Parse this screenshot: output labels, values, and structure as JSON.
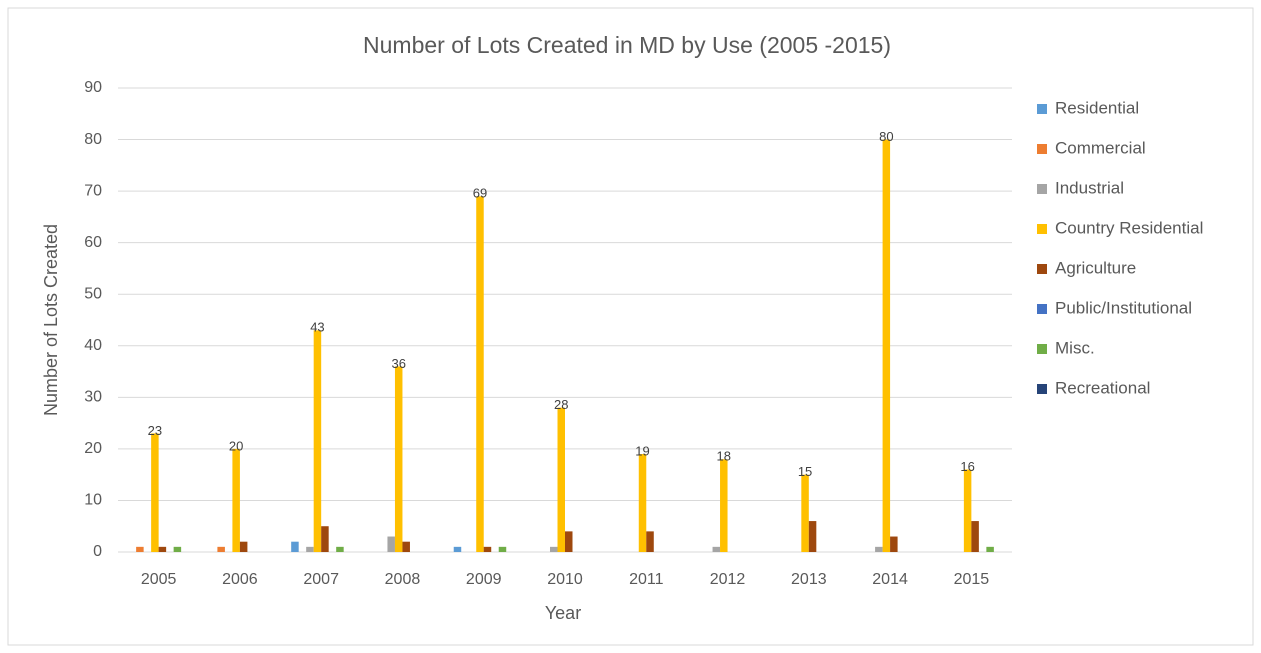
{
  "chart_data": {
    "type": "bar",
    "title": "Number of Lots Created in MD by Use (2005 -2015)",
    "xlabel": "Year",
    "ylabel": "Number of Lots Created",
    "categories": [
      "2005",
      "2006",
      "2007",
      "2008",
      "2009",
      "2010",
      "2011",
      "2012",
      "2013",
      "2014",
      "2015"
    ],
    "series": [
      {
        "name": "Residential",
        "color": "#5b9bd5",
        "values": [
          0,
          0,
          2,
          0,
          1,
          0,
          0,
          0,
          0,
          0,
          0
        ]
      },
      {
        "name": "Commercial",
        "color": "#ed7d31",
        "values": [
          1,
          1,
          0,
          0,
          0,
          0,
          0,
          0,
          0,
          0,
          0
        ]
      },
      {
        "name": "Industrial",
        "color": "#a5a5a5",
        "values": [
          0,
          0,
          1,
          3,
          0,
          1,
          0,
          1,
          0,
          1,
          0
        ]
      },
      {
        "name": "Country Residential",
        "color": "#ffc000",
        "values": [
          23,
          20,
          43,
          36,
          69,
          28,
          19,
          18,
          15,
          80,
          16
        ],
        "data_labels": true
      },
      {
        "name": "Agriculture",
        "color": "#9e480e",
        "values": [
          1,
          2,
          5,
          2,
          1,
          4,
          4,
          0,
          6,
          3,
          6
        ]
      },
      {
        "name": "Public/Institutional",
        "color": "#4472c4",
        "values": [
          0,
          0,
          0,
          0,
          0,
          0,
          0,
          0,
          0,
          0,
          0
        ]
      },
      {
        "name": "Misc.",
        "color": "#70ad47",
        "values": [
          1,
          0,
          1,
          0,
          1,
          0,
          0,
          0,
          0,
          0,
          1
        ]
      },
      {
        "name": "Recreational",
        "color": "#264478",
        "values": [
          0,
          0,
          0,
          0,
          0,
          0,
          0,
          0,
          0,
          0,
          0
        ]
      }
    ],
    "ylim": [
      0,
      90
    ],
    "yticks": [
      0,
      10,
      20,
      30,
      40,
      50,
      60,
      70,
      80,
      90
    ],
    "grid": true,
    "legend": "right"
  }
}
